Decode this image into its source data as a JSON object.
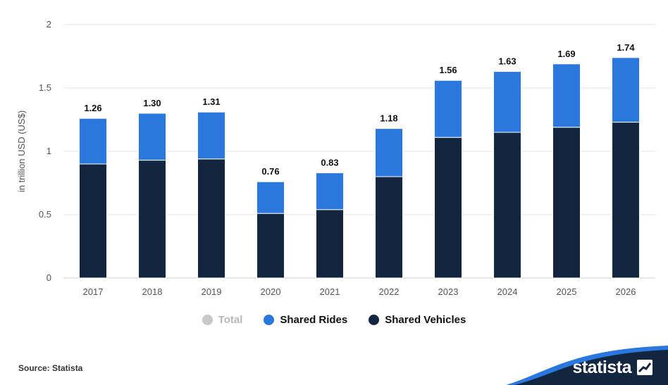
{
  "chart_data": {
    "type": "bar",
    "stacked": true,
    "categories": [
      "2017",
      "2018",
      "2019",
      "2020",
      "2021",
      "2022",
      "2023",
      "2024",
      "2025",
      "2026"
    ],
    "series": [
      {
        "name": "Shared Vehicles",
        "color": "#13263f",
        "values": [
          0.9,
          0.93,
          0.94,
          0.51,
          0.54,
          0.8,
          1.11,
          1.15,
          1.19,
          1.23
        ]
      },
      {
        "name": "Shared Rides",
        "color": "#2a77de",
        "values": [
          0.36,
          0.37,
          0.37,
          0.25,
          0.29,
          0.38,
          0.45,
          0.48,
          0.5,
          0.51
        ]
      }
    ],
    "totals": [
      "1.26",
      "1.30",
      "1.31",
      "0.76",
      "0.83",
      "1.18",
      "1.56",
      "1.63",
      "1.69",
      "1.74"
    ],
    "ylabel": "in trillion USD (US$)",
    "yticks": [
      "0",
      "0.5",
      "1",
      "1.5",
      "2"
    ],
    "ylim": [
      0,
      2
    ],
    "grid": true
  },
  "legend": {
    "items": [
      {
        "label": "Total",
        "color": "#c8c8c8",
        "disabled": true
      },
      {
        "label": "Shared Rides",
        "color": "#2a77de",
        "disabled": false
      },
      {
        "label": "Shared Vehicles",
        "color": "#13263f",
        "disabled": false
      }
    ]
  },
  "source": "Source: Statista",
  "brand": {
    "name": "statista",
    "color": "#13263f",
    "accent": "#2a77de"
  }
}
